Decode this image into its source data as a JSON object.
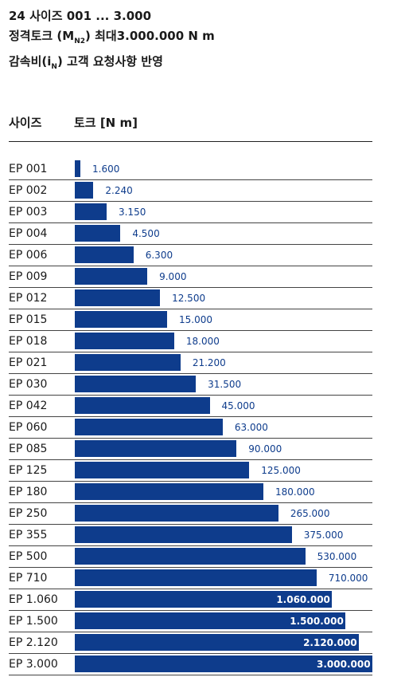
{
  "header": {
    "line1": "24 사이즈 001 ... 3.000",
    "line2_pre": "정격토크 (M",
    "line2_sub": "N2",
    "line2_post": ") 최대3.000.000 N m",
    "line3_pre": "감속비(i",
    "line3_sub": "N",
    "line3_post": ") 고객 요청사항 반영"
  },
  "columns": {
    "size": "사이즈",
    "torque": "토크 [N m]"
  },
  "colors": {
    "bar": "#0e3c8c",
    "label_inside": "#ffffff"
  },
  "chart_data": {
    "type": "bar",
    "orientation": "horizontal",
    "scale": "log",
    "categories": [
      "EP 001",
      "EP 002",
      "EP 003",
      "EP 004",
      "EP 006",
      "EP 009",
      "EP 012",
      "EP 015",
      "EP 018",
      "EP 021",
      "EP 030",
      "EP 042",
      "EP 060",
      "EP 085",
      "EP 125",
      "EP 180",
      "EP 250",
      "EP 355",
      "EP 500",
      "EP 710",
      "EP 1.060",
      "EP 1.500",
      "EP 2.120",
      "EP 3.000"
    ],
    "values": [
      1600,
      2240,
      3150,
      4500,
      6300,
      9000,
      12500,
      15000,
      18000,
      21200,
      31500,
      45000,
      63000,
      90000,
      125000,
      180000,
      265000,
      375000,
      530000,
      710000,
      1060000,
      1500000,
      2120000,
      3000000
    ],
    "value_labels": [
      "1.600",
      "2.240",
      "3.150",
      "4.500",
      "6.300",
      "9.000",
      "12.500",
      "15.000",
      "18.000",
      "21.200",
      "31.500",
      "45.000",
      "63.000",
      "90.000",
      "125.000",
      "180.000",
      "265.000",
      "375.000",
      "530.000",
      "710.000",
      "1.060.000",
      "1.500.000",
      "2.120.000",
      "3.000.000"
    ],
    "xlim": [
      1000,
      3000000
    ],
    "grid": false
  }
}
